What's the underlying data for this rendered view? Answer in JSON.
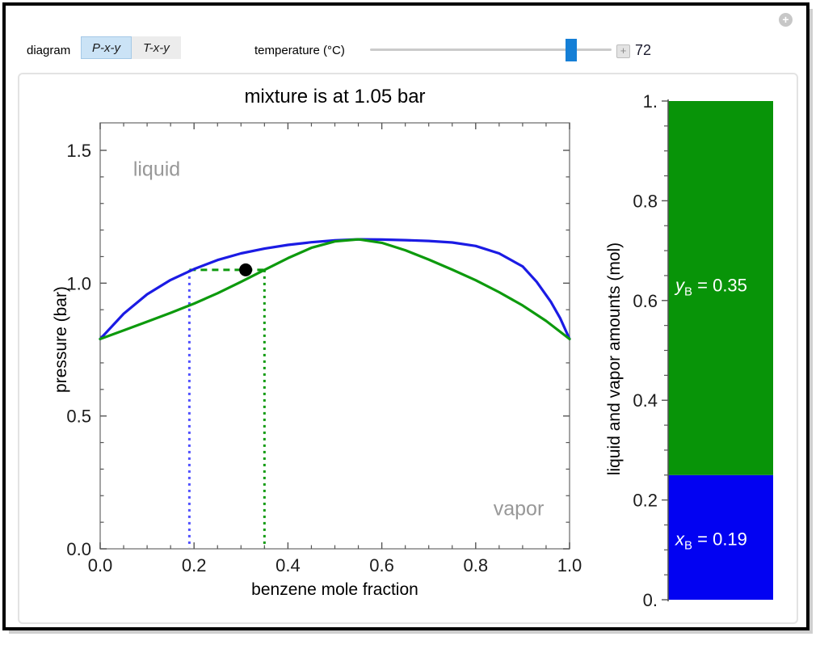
{
  "window": {
    "expand_icon": "+"
  },
  "controls": {
    "diagram_label": "diagram",
    "buttons": [
      {
        "label": "P-x-y",
        "selected": true
      },
      {
        "label": "T-x-y",
        "selected": false
      }
    ],
    "slider": {
      "label": "temperature (°C)",
      "value": "72",
      "fraction": 0.833,
      "stepper_icon": "+"
    }
  },
  "chart_data": [
    {
      "type": "line",
      "title": "mixture is at 1.05 bar",
      "xlabel": "benzene mole fraction",
      "ylabel": "pressure (bar)",
      "xlim": [
        0,
        1
      ],
      "ylim": [
        0,
        1.5
      ],
      "xticks": [
        0,
        0.2,
        0.4,
        0.6,
        0.8,
        1.0
      ],
      "xtick_labels": [
        "0.0",
        "0.2",
        "0.4",
        "0.6",
        "0.8",
        "1.0"
      ],
      "yticks": [
        0,
        0.5,
        1.0,
        1.5
      ],
      "ytick_labels": [
        "0.0",
        "0.5",
        "1.0",
        "1.5"
      ],
      "series": [
        {
          "name": "bubble-point liquid curve",
          "color": "#1b1be4",
          "x": [
            0,
            0.05,
            0.1,
            0.15,
            0.2,
            0.25,
            0.3,
            0.35,
            0.4,
            0.45,
            0.5,
            0.55,
            0.6,
            0.65,
            0.7,
            0.75,
            0.8,
            0.85,
            0.9,
            0.93,
            0.96,
            0.98,
            1.0
          ],
          "y": [
            0.79,
            0.885,
            0.958,
            1.012,
            1.053,
            1.087,
            1.112,
            1.13,
            1.144,
            1.154,
            1.161,
            1.165,
            1.164,
            1.162,
            1.159,
            1.153,
            1.14,
            1.112,
            1.063,
            1.005,
            0.93,
            0.868,
            0.79
          ]
        },
        {
          "name": "dew-point vapor curve",
          "color": "#0d9a0d",
          "x": [
            0,
            0.05,
            0.1,
            0.15,
            0.2,
            0.25,
            0.3,
            0.35,
            0.4,
            0.45,
            0.5,
            0.55,
            0.6,
            0.65,
            0.7,
            0.75,
            0.8,
            0.85,
            0.9,
            0.95,
            1.0
          ],
          "y": [
            0.79,
            0.822,
            0.855,
            0.888,
            0.923,
            0.962,
            1.005,
            1.05,
            1.094,
            1.133,
            1.157,
            1.165,
            1.152,
            1.124,
            1.089,
            1.051,
            1.011,
            0.966,
            0.916,
            0.858,
            0.79
          ]
        }
      ],
      "point": {
        "x": 0.31,
        "y": 1.05,
        "color": "#000000"
      },
      "tie_line": {
        "y": 1.05,
        "x1": 0.19,
        "x2": 0.35,
        "color": "#0d9a0d"
      },
      "guides": [
        {
          "x": 0.19,
          "y_top": 1.05,
          "color": "#5050ff"
        },
        {
          "x": 0.35,
          "y_top": 1.05,
          "color": "#0d9a0d"
        }
      ],
      "region_labels": [
        {
          "text": "liquid",
          "x": 0.121,
          "y": 1.43
        },
        {
          "text": "vapor",
          "x": 0.896,
          "y": 0.15
        }
      ],
      "grid": false,
      "legend": "none"
    },
    {
      "type": "bar",
      "stacked": true,
      "ylabel": "liquid and vapor amounts (mol)",
      "ylim": [
        0,
        1
      ],
      "ytick_values": [
        0,
        0.2,
        0.4,
        0.6,
        0.8,
        1.0
      ],
      "ytick_labels": [
        "0.",
        "0.2",
        "0.4",
        "0.6",
        "0.8",
        "1."
      ],
      "segments": [
        {
          "name": "liquid amount",
          "value": 0.25,
          "color": "#0202f2",
          "label": {
            "symbol": "x",
            "subscript": "B",
            "rest": " = 0.19"
          }
        },
        {
          "name": "vapor amount",
          "value": 0.75,
          "color": "#089408",
          "label": {
            "symbol": "y",
            "subscript": "B",
            "rest": " = 0.35"
          }
        }
      ]
    }
  ]
}
